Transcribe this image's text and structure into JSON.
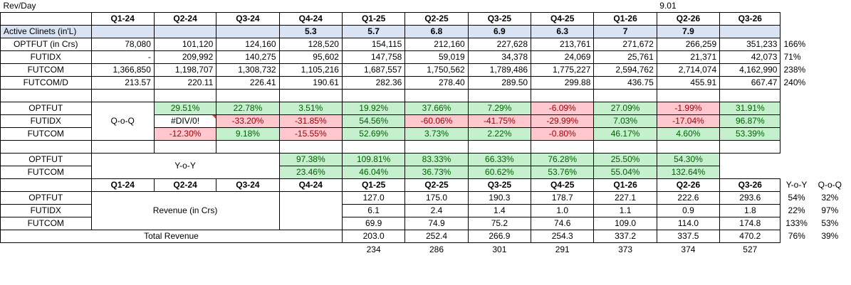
{
  "rev_per_day": {
    "label": "Rev/Day",
    "value": "9.01"
  },
  "quarters": [
    "Q1-24",
    "Q2-24",
    "Q3-24",
    "Q4-24",
    "Q1-25",
    "Q2-25",
    "Q3-25",
    "Q4-25",
    "Q1-26",
    "Q2-26",
    "Q3-26"
  ],
  "active_clients": {
    "label": "Active Clinets (in'L)",
    "values": [
      "",
      "",
      "",
      "5.3",
      "5.7",
      "6.8",
      "6.9",
      "6.3",
      "7",
      "7.9",
      ""
    ]
  },
  "volumes": [
    {
      "label": "OPTFUT (in Crs)",
      "values": [
        "78,080",
        "101,120",
        "124,160",
        "128,520",
        "154,115",
        "212,160",
        "227,628",
        "213,761",
        "271,672",
        "266,259",
        "351,233"
      ],
      "growth": "166%"
    },
    {
      "label": "FUTIDX",
      "values": [
        "-",
        "209,992",
        "140,275",
        "95,602",
        "147,758",
        "59,019",
        "34,378",
        "24,069",
        "25,761",
        "21,371",
        "42,073"
      ],
      "growth": "71%"
    },
    {
      "label": "FUTCOM",
      "values": [
        "1,366,850",
        "1,198,707",
        "1,308,732",
        "1,105,216",
        "1,687,557",
        "1,750,562",
        "1,789,486",
        "1,775,227",
        "2,594,762",
        "2,714,074",
        "4,162,990"
      ],
      "growth": "238%"
    },
    {
      "label": "FUTCOM/D",
      "values": [
        "213.57",
        "220.11",
        "226.41",
        "190.61",
        "282.36",
        "278.40",
        "289.50",
        "299.88",
        "436.75",
        "455.91",
        "667.47"
      ],
      "growth": "240%"
    }
  ],
  "qoq": {
    "label": "Q-o-Q",
    "rows": [
      {
        "label": "OPTFUT",
        "values": [
          "29.51%",
          "22.78%",
          "3.51%",
          "19.92%",
          "37.66%",
          "7.29%",
          "-6.09%",
          "27.09%",
          "-1.99%",
          "31.91%"
        ],
        "colors": [
          "g",
          "g",
          "g",
          "g",
          "g",
          "g",
          "r",
          "g",
          "r",
          "g"
        ]
      },
      {
        "label": "FUTIDX",
        "values": [
          "#DIV/0!",
          "-33.20%",
          "-31.85%",
          "54.56%",
          "-60.06%",
          "-41.75%",
          "-29.99%",
          "7.03%",
          "-17.04%",
          "96.87%"
        ],
        "colors": [
          "n",
          "r",
          "r",
          "g",
          "r",
          "r",
          "r",
          "g",
          "r",
          "g"
        ]
      },
      {
        "label": "FUTCOM",
        "values": [
          "-12.30%",
          "9.18%",
          "-15.55%",
          "52.69%",
          "3.73%",
          "2.22%",
          "-0.80%",
          "46.17%",
          "4.60%",
          "53.39%"
        ],
        "colors": [
          "r",
          "g",
          "r",
          "g",
          "g",
          "g",
          "r",
          "g",
          "g",
          "g"
        ]
      }
    ]
  },
  "yoy": {
    "label": "Y-o-Y",
    "rows": [
      {
        "label": "OPTFUT",
        "values": [
          "97.38%",
          "109.81%",
          "83.33%",
          "66.33%",
          "76.28%",
          "25.50%",
          "54.30%"
        ]
      },
      {
        "label": "FUTCOM",
        "values": [
          "23.46%",
          "46.04%",
          "36.73%",
          "60.62%",
          "53.76%",
          "55.04%",
          "132.64%"
        ]
      }
    ]
  },
  "revenue": {
    "label": "Revenue (in Crs)",
    "yoy_header": "Y-o-Y",
    "qoq_header": "Q-o-Q",
    "rows": [
      {
        "label": "OPTFUT",
        "values": [
          "127.0",
          "175.0",
          "190.3",
          "178.7",
          "227.1",
          "222.6",
          "293.6"
        ],
        "yoy": "54%",
        "qoq": "32%"
      },
      {
        "label": "FUTIDX",
        "values": [
          "6.1",
          "2.4",
          "1.4",
          "1.0",
          "1.1",
          "0.9",
          "1.8"
        ],
        "yoy": "22%",
        "qoq": "97%"
      },
      {
        "label": "FUTCOM",
        "values": [
          "69.9",
          "74.9",
          "75.2",
          "74.6",
          "109.0",
          "114.0",
          "174.8"
        ],
        "yoy": "133%",
        "qoq": "53%"
      }
    ],
    "total": {
      "label": "Total Revenue",
      "values": [
        "203.0",
        "252.4",
        "266.9",
        "254.3",
        "337.2",
        "337.5",
        "470.2"
      ],
      "yoy": "76%",
      "qoq": "39%"
    },
    "extra": [
      "234",
      "286",
      "301",
      "291",
      "373",
      "374",
      "527"
    ]
  }
}
